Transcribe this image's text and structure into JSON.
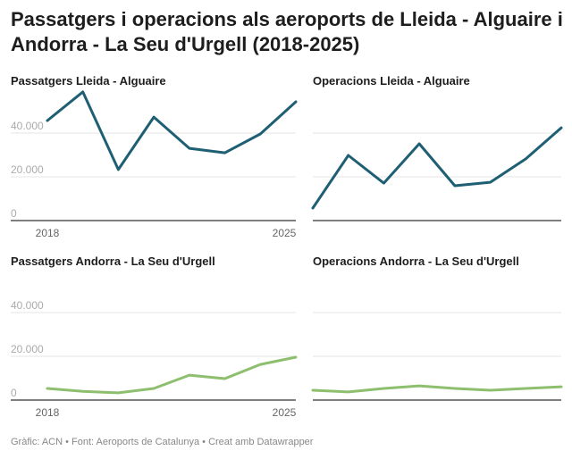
{
  "title": "Passatgers i operacions als aeroports de Lleida - Alguaire i Andorra - La Seu d'Urgell (2018-2025)",
  "footer": "Gràfic: ACN • Font: Aeroports de Catalunya • Creat amb Datawrapper",
  "chart_data": [
    {
      "type": "line",
      "title": "Passatgers Lleida - Alguaire",
      "color": "#1f5f74",
      "x": [
        2018,
        2019,
        2020,
        2021,
        2022,
        2023,
        2024,
        2025
      ],
      "values": [
        45700,
        58800,
        23300,
        47300,
        33000,
        31000,
        39600,
        54300
      ],
      "ylim": [
        0,
        60000
      ],
      "yticks": [
        "0",
        "20.000",
        "40.000"
      ],
      "xticks": [
        "2018",
        "2025"
      ],
      "grid": true
    },
    {
      "type": "line",
      "title": "Operacions Lleida - Alguaire",
      "color": "#1f5f74",
      "x": [
        2018,
        2019,
        2020,
        2021,
        2022,
        2023,
        2024,
        2025
      ],
      "values": [
        5700,
        29800,
        17100,
        35100,
        15900,
        17500,
        28200,
        42400
      ],
      "ylim": [
        0,
        60000
      ],
      "grid": true
    },
    {
      "type": "line",
      "title": "Passatgers Andorra - La Seu d'Urgell",
      "color": "#8dbf6e",
      "x": [
        2018,
        2019,
        2020,
        2021,
        2022,
        2023,
        2024,
        2025
      ],
      "values": [
        5300,
        4000,
        3300,
        5300,
        11400,
        9800,
        16300,
        19600
      ],
      "ylim": [
        0,
        60000
      ],
      "yticks": [
        "0",
        "20.000",
        "40.000"
      ],
      "xticks": [
        "2018",
        "2025"
      ],
      "grid": true
    },
    {
      "type": "line",
      "title": "Operacions Andorra - La Seu d'Urgell",
      "color": "#8dbf6e",
      "x": [
        2018,
        2019,
        2020,
        2021,
        2022,
        2023,
        2024,
        2025
      ],
      "values": [
        4500,
        3700,
        5300,
        6500,
        5300,
        4500,
        5300,
        6100
      ],
      "ylim": [
        0,
        60000
      ],
      "grid": true
    }
  ]
}
